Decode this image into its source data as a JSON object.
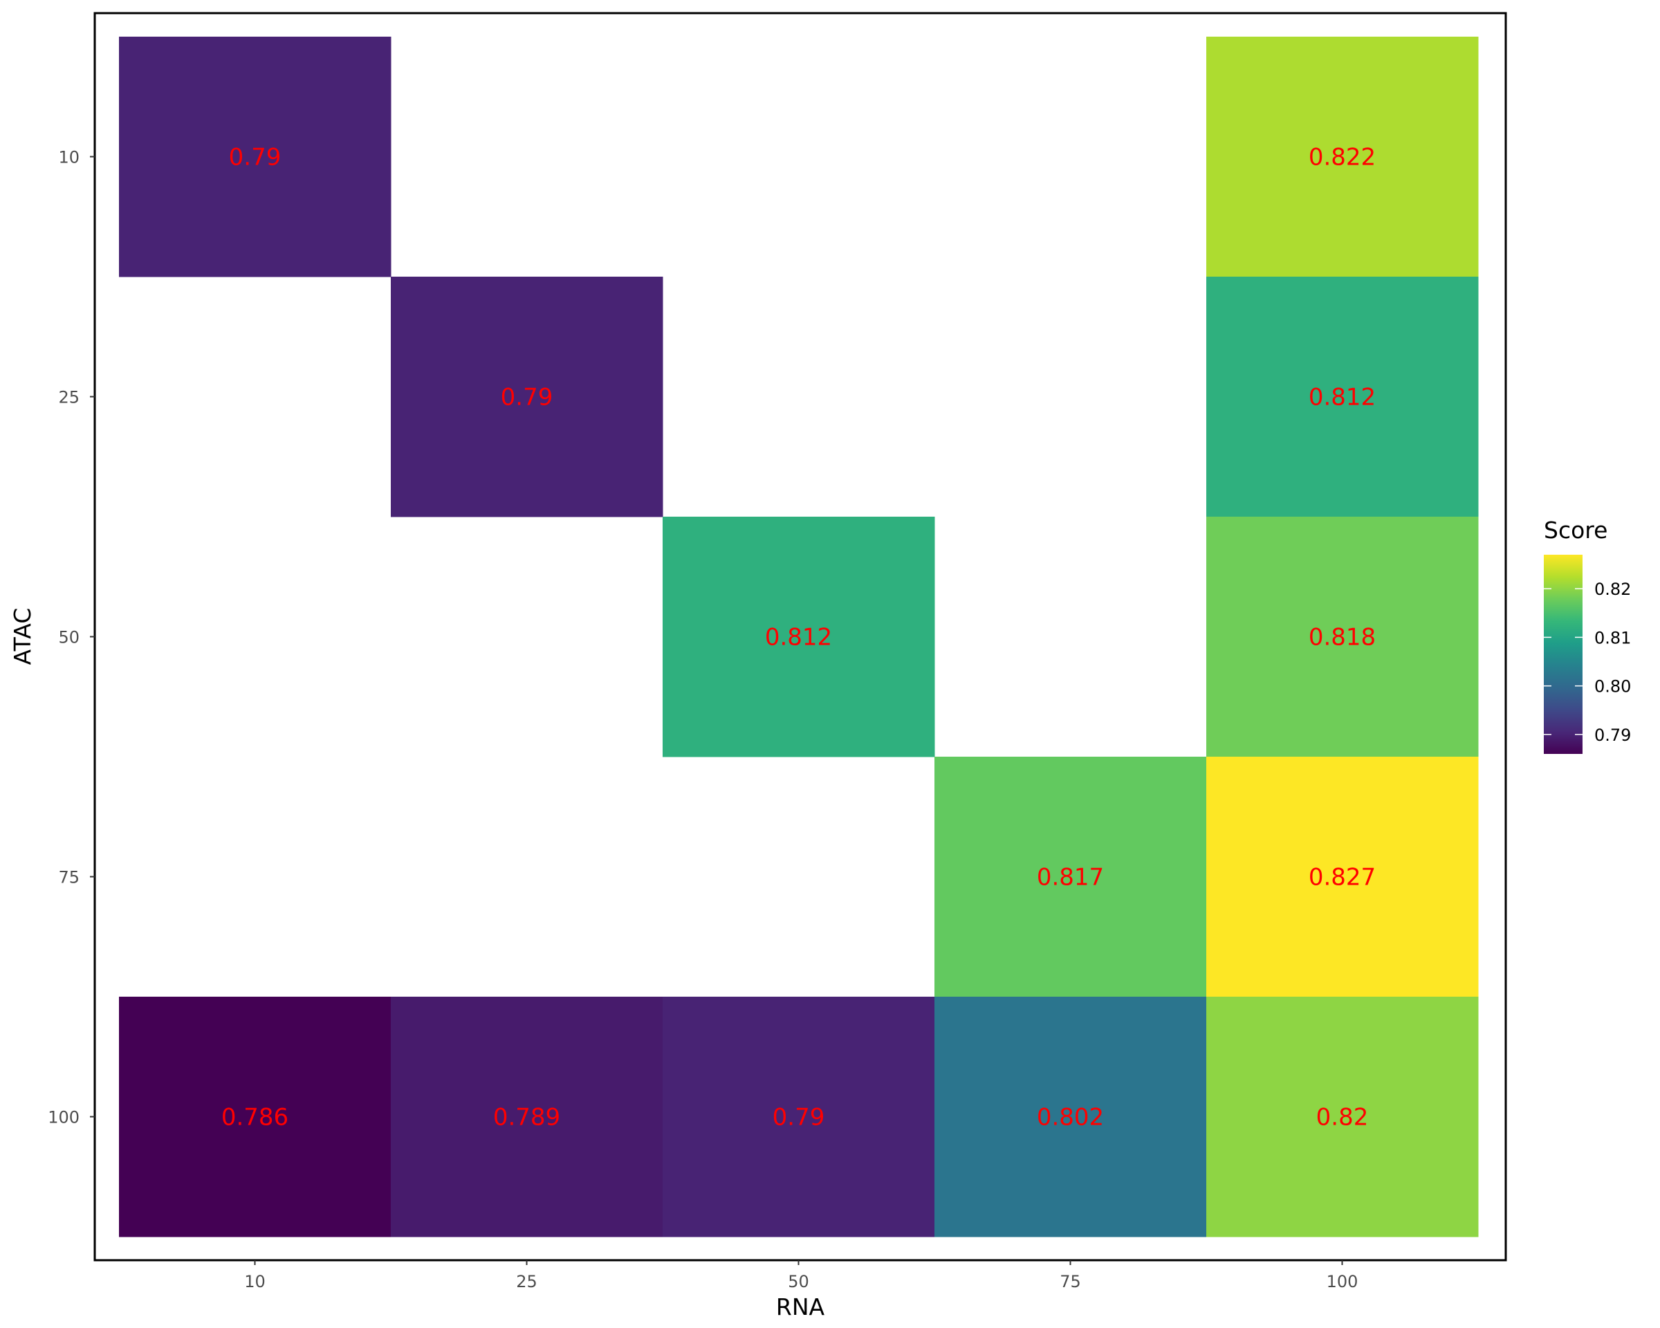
{
  "chart_data": {
    "type": "heatmap",
    "xlabel": "RNA",
    "ylabel": "ATAC",
    "x_categories": [
      "10",
      "25",
      "50",
      "75",
      "100"
    ],
    "y_categories": [
      "10",
      "25",
      "50",
      "75",
      "100"
    ],
    "cells": [
      {
        "x": "10",
        "y": "10",
        "value": 0.79,
        "label": "0.79"
      },
      {
        "x": "100",
        "y": "10",
        "value": 0.822,
        "label": "0.822"
      },
      {
        "x": "25",
        "y": "25",
        "value": 0.79,
        "label": "0.79"
      },
      {
        "x": "100",
        "y": "25",
        "value": 0.812,
        "label": "0.812"
      },
      {
        "x": "50",
        "y": "50",
        "value": 0.812,
        "label": "0.812"
      },
      {
        "x": "100",
        "y": "50",
        "value": 0.818,
        "label": "0.818"
      },
      {
        "x": "75",
        "y": "75",
        "value": 0.817,
        "label": "0.817"
      },
      {
        "x": "100",
        "y": "75",
        "value": 0.827,
        "label": "0.827"
      },
      {
        "x": "10",
        "y": "100",
        "value": 0.786,
        "label": "0.786"
      },
      {
        "x": "25",
        "y": "100",
        "value": 0.789,
        "label": "0.789"
      },
      {
        "x": "50",
        "y": "100",
        "value": 0.79,
        "label": "0.79"
      },
      {
        "x": "75",
        "y": "100",
        "value": 0.802,
        "label": "0.802"
      },
      {
        "x": "100",
        "y": "100",
        "value": 0.82,
        "label": "0.82"
      }
    ],
    "legend": {
      "title": "Score",
      "position": "right",
      "breaks": [
        0.79,
        0.8,
        0.81,
        0.82
      ],
      "break_labels": [
        "0.79",
        "0.80",
        "0.81",
        "0.82"
      ],
      "range": [
        0.786,
        0.827
      ],
      "palette": "viridis"
    },
    "colors": {
      "label_text": "#ff0000",
      "border": "#000000",
      "viridis": [
        "#440154",
        "#482878",
        "#3e4a89",
        "#31688e",
        "#26828e",
        "#1f9e89",
        "#35b779",
        "#6dcd59",
        "#b4de2c",
        "#fde725"
      ]
    },
    "grid": false
  }
}
